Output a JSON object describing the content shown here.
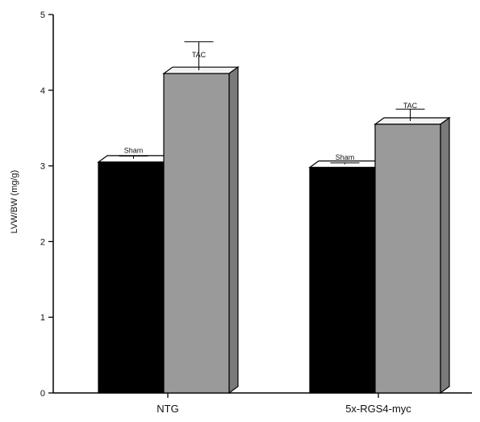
{
  "chart_data": {
    "type": "bar",
    "title": "",
    "xlabel": "",
    "ylabel": "LVW/BW  (mg/g)",
    "ylim": [
      0,
      5
    ],
    "yticks": [
      "0",
      "1",
      "2",
      "3",
      "4",
      "5"
    ],
    "categories": [
      "NTG",
      "5x-RGS4-myc"
    ],
    "grid": false,
    "series": [
      {
        "name": "Sham",
        "values": [
          3.05,
          2.98
        ],
        "errors": [
          0.08,
          0.06
        ],
        "color": "#000000"
      },
      {
        "name": "TAC",
        "values": [
          4.22,
          3.55
        ],
        "errors": [
          0.42,
          0.2
        ],
        "color": "#9a9a9a"
      }
    ],
    "bar_labels": [
      [
        "Sham",
        "Sham"
      ],
      [
        "TAC",
        "TAC"
      ]
    ]
  }
}
